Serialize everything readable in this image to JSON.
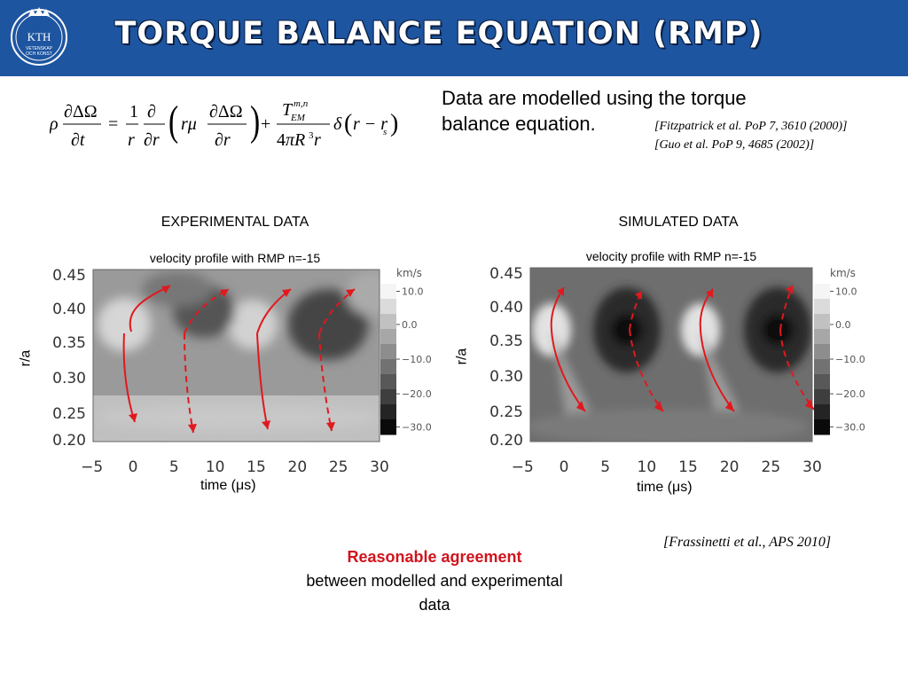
{
  "header": {
    "title": "TORQUE BALANCE EQUATION (RMP)",
    "logo_text": "KTH",
    "logo_subtext_1": "VETENSKAP",
    "logo_subtext_2": "OCH KONST",
    "background_color": "#1e55a0"
  },
  "intro": {
    "text": "Data are modelled using the torque balance equation.",
    "references": [
      "[Fitzpatrick et al. PoP 7, 3610 (2000)]",
      "[Guo et al. PoP 9, 4685 (2002)]"
    ]
  },
  "experimental": {
    "heading": "EXPERIMENTAL DATA",
    "plot_title": "velocity profile with RMP n=-15",
    "xlabel": "time (μs)",
    "ylabel": "r/a"
  },
  "simulated": {
    "heading": "SIMULATED DATA",
    "plot_title": "velocity profile with RMP n=-15",
    "xlabel": "time (μs)",
    "ylabel": "r/a"
  },
  "axes": {
    "x_ticks": [
      "−5",
      "0",
      "5",
      "10",
      "15",
      "20",
      "25",
      "30"
    ],
    "y_ticks": [
      "0.45",
      "0.40",
      "0.35",
      "0.30",
      "0.25",
      "0.20"
    ]
  },
  "colorbar": {
    "unit": "km/s",
    "ticks": [
      "10.0",
      "0.0",
      "−10.0",
      "−20.0",
      "−30.0"
    ]
  },
  "citation": "[Frassinetti et al., APS 2010]",
  "conclusion": {
    "highlight": "Reasonable agreement",
    "rest": "between modelled and experimental data"
  },
  "colors": {
    "arrow": "#e0191e",
    "highlight": "#d0141c"
  }
}
